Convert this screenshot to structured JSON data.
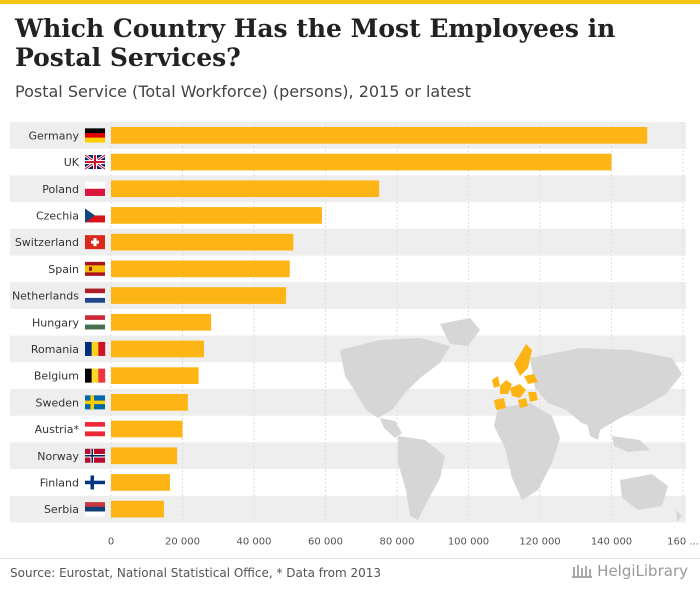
{
  "title": "Which Country Has the Most Employees in Postal Services?",
  "subtitle": "Postal Service (Total Workforce) (persons), 2015 or latest",
  "source": "Source: Eurostat, National Statistical Office, * Data from 2013",
  "brand": "HelgiLibrary",
  "colors": {
    "bar": "#fdb515",
    "band": "#eeeeee",
    "grid": "#dddddd",
    "map_land": "#d6d6d6",
    "map_highlight": "#fdb515"
  },
  "chart_data": {
    "type": "bar",
    "orientation": "horizontal",
    "categories": [
      "Germany",
      "UK",
      "Poland",
      "Czechia",
      "Switzerland",
      "Spain",
      "Netherlands",
      "Hungary",
      "Romania",
      "Belgium",
      "Sweden",
      "Austria*",
      "Norway",
      "Finland",
      "Serbia"
    ],
    "values": [
      150000,
      140000,
      75000,
      59000,
      51000,
      50000,
      49000,
      28000,
      26000,
      24500,
      21500,
      20000,
      18500,
      16500,
      14800
    ],
    "xticks": [
      "0",
      "20 000",
      "40 000",
      "60 000",
      "80 000",
      "100 000",
      "120 000",
      "140 000",
      "160 ..."
    ],
    "xlim": [
      0,
      160000
    ],
    "title": "Which Country Has the Most Employees in Postal Services?",
    "xlabel": "",
    "ylabel": ""
  }
}
